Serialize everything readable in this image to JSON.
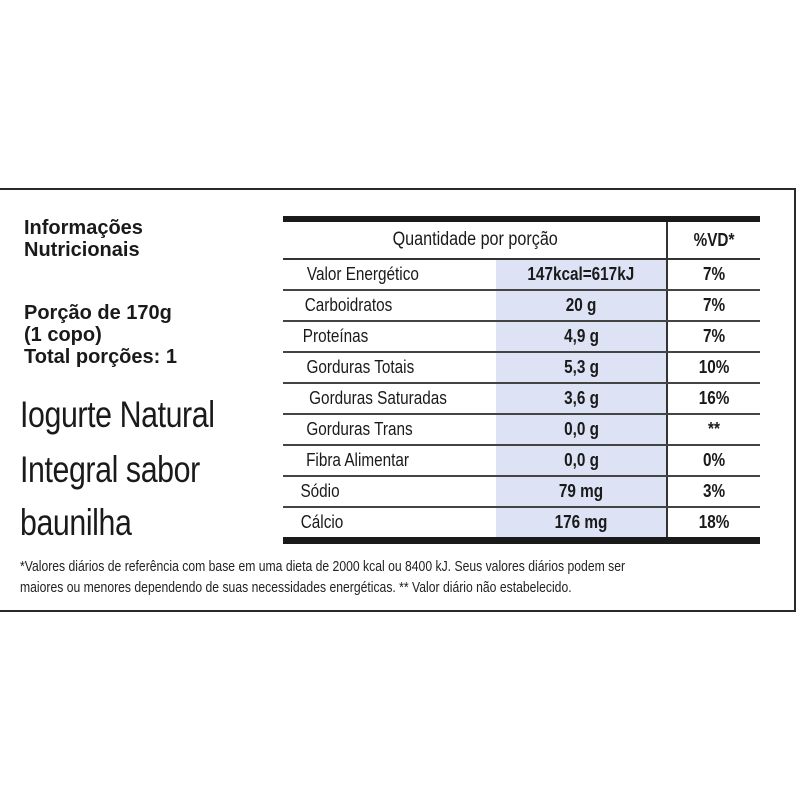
{
  "title_lines": [
    "Informações",
    "Nutricionais"
  ],
  "portion_lines": [
    "Porção de 170g",
    "(1 copo)",
    "Total porções: 1"
  ],
  "product_lines": [
    "Iogurte Natural",
    "Integral sabor",
    "baunilha"
  ],
  "table": {
    "header": {
      "quantity": "Quantidade por porção",
      "dv": "%VD*"
    },
    "rows": [
      {
        "name": "Valor Energético",
        "amount": "147kcal=617kJ",
        "dv": "7%"
      },
      {
        "name": "Carboidratos",
        "amount": "20 g",
        "dv": "7%"
      },
      {
        "name": "Proteínas",
        "amount": "4,9 g",
        "dv": "7%"
      },
      {
        "name": "Gorduras Totais",
        "amount": "5,3 g",
        "dv": "10%"
      },
      {
        "name": "Gorduras Saturadas",
        "amount": "3,6 g",
        "dv": "16%"
      },
      {
        "name": "Gorduras Trans",
        "amount": "0,0 g",
        "dv": "**"
      },
      {
        "name": "Fibra Alimentar",
        "amount": "0,0 g",
        "dv": "0%"
      },
      {
        "name": "Sódio",
        "amount": "79 mg",
        "dv": "3%"
      },
      {
        "name": "Cálcio",
        "amount": "176 mg",
        "dv": "18%"
      }
    ]
  },
  "footnote_lines": [
    "*Valores diários de referência com base em uma dieta de 2000 kcal ou 8400 kJ. Seus valores diários podem ser",
    "maiores ou menores dependendo de suas necessidades energéticas. ** Valor diário não estabelecido."
  ],
  "colors": {
    "amount_column_bg": "#dde3f5",
    "rules": "#1a1a1a"
  }
}
